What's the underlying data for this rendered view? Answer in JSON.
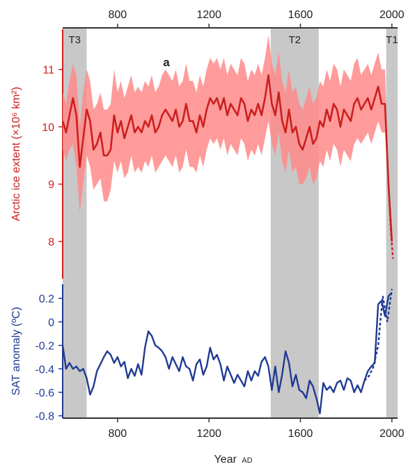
{
  "panel_label": "a",
  "colors": {
    "ice": "#cc1f1f",
    "ice_band": "#ff8a8a",
    "sat": "#1f3a93",
    "shade": "#c8c8c8",
    "axis": "#333333"
  },
  "chart_data": {
    "type": "line",
    "xlabel": "Year",
    "xlabel_suffix": "AD",
    "xlim": [
      560,
      2025
    ],
    "x_ticks": [
      800,
      1200,
      1600,
      2000
    ],
    "periods": [
      {
        "label": "T3",
        "start": 560,
        "end": 665
      },
      {
        "label": "T2",
        "start": 1470,
        "end": 1680
      },
      {
        "label": "T1",
        "start": 1975,
        "end": 2025
      }
    ],
    "panels": [
      {
        "name": "ice",
        "ylabel": "Arctic ice extent (×10⁶ km²)",
        "ylim": [
          7.35,
          11.7
        ],
        "y_ticks": [
          8,
          9,
          10,
          11
        ],
        "series": [
          {
            "x": [
              560,
              575,
              590,
              605,
              620,
              635,
              650,
              665,
              680,
              695,
              710,
              725,
              740,
              755,
              770,
              785,
              800,
              815,
              830,
              845,
              860,
              875,
              890,
              905,
              920,
              935,
              950,
              965,
              980,
              995,
              1010,
              1025,
              1040,
              1055,
              1070,
              1085,
              1100,
              1115,
              1130,
              1145,
              1160,
              1175,
              1190,
              1205,
              1220,
              1235,
              1250,
              1265,
              1280,
              1295,
              1310,
              1325,
              1340,
              1355,
              1370,
              1385,
              1400,
              1415,
              1430,
              1445,
              1460,
              1475,
              1490,
              1505,
              1520,
              1535,
              1550,
              1565,
              1580,
              1595,
              1610,
              1625,
              1640,
              1655,
              1670,
              1685,
              1700,
              1715,
              1730,
              1745,
              1760,
              1775,
              1790,
              1805,
              1820,
              1835,
              1850,
              1865,
              1880,
              1895,
              1910,
              1925,
              1940,
              1955,
              1970,
              1985,
              2000
            ],
            "y": [
              10.1,
              9.9,
              10.2,
              10.5,
              10.2,
              9.3,
              9.8,
              10.3,
              10.1,
              9.6,
              9.7,
              9.9,
              9.5,
              9.5,
              9.6,
              10.2,
              9.9,
              10.1,
              9.8,
              10.0,
              10.2,
              9.9,
              10.0,
              9.9,
              10.1,
              10.0,
              10.2,
              9.9,
              10.0,
              10.2,
              10.3,
              10.2,
              10.1,
              10.3,
              10.0,
              10.1,
              10.4,
              10.1,
              10.1,
              9.9,
              10.2,
              10.0,
              10.3,
              10.5,
              10.4,
              10.5,
              10.3,
              10.5,
              10.2,
              10.4,
              10.3,
              10.2,
              10.5,
              10.4,
              10.1,
              10.3,
              10.2,
              10.4,
              10.2,
              10.5,
              10.9,
              10.4,
              10.2,
              10.6,
              10.1,
              9.9,
              10.3,
              9.9,
              10.0,
              9.7,
              9.6,
              9.8,
              10.0,
              9.7,
              9.8,
              10.1,
              10.0,
              10.3,
              10.1,
              10.4,
              10.3,
              10.0,
              10.3,
              10.2,
              10.1,
              10.4,
              10.5,
              10.3,
              10.4,
              10.5,
              10.3,
              10.5,
              10.7,
              10.4,
              10.4,
              9.0,
              8.0
            ],
            "lower": [
              9.6,
              9.4,
              9.6,
              9.7,
              9.3,
              8.5,
              9.0,
              9.5,
              9.3,
              8.9,
              9.0,
              9.1,
              8.7,
              8.7,
              8.9,
              9.4,
              9.2,
              9.4,
              9.1,
              9.2,
              9.5,
              9.2,
              9.3,
              9.2,
              9.4,
              9.3,
              9.5,
              9.2,
              9.3,
              9.4,
              9.5,
              9.4,
              9.3,
              9.5,
              9.2,
              9.3,
              9.6,
              9.3,
              9.3,
              9.2,
              9.5,
              9.3,
              9.6,
              9.8,
              9.7,
              9.8,
              9.6,
              9.8,
              9.5,
              9.7,
              9.6,
              9.5,
              9.8,
              9.7,
              9.4,
              9.6,
              9.5,
              9.7,
              9.5,
              9.8,
              10.1,
              9.7,
              9.5,
              9.9,
              9.4,
              9.2,
              9.6,
              9.2,
              9.3,
              9.0,
              9.0,
              9.1,
              9.3,
              9.0,
              9.1,
              9.4,
              9.3,
              9.6,
              9.4,
              9.7,
              9.6,
              9.3,
              9.6,
              9.5,
              9.4,
              9.7,
              9.8,
              9.7,
              9.8,
              9.9,
              9.7,
              9.9,
              10.1,
              9.9,
              9.9,
              8.8,
              7.8
            ],
            "upper": [
              10.6,
              10.4,
              10.8,
              11.1,
              10.9,
              10.0,
              10.6,
              11.0,
              10.8,
              10.3,
              10.4,
              10.6,
              10.3,
              10.3,
              10.4,
              11.0,
              10.6,
              10.8,
              10.5,
              10.7,
              10.9,
              10.6,
              10.7,
              10.6,
              10.8,
              10.7,
              10.9,
              10.6,
              10.7,
              10.9,
              11.0,
              10.9,
              10.8,
              11.0,
              10.7,
              10.8,
              11.1,
              10.8,
              10.8,
              10.6,
              10.9,
              10.7,
              11.0,
              11.2,
              11.1,
              11.2,
              11.0,
              11.2,
              10.9,
              11.1,
              11.0,
              10.9,
              11.2,
              11.1,
              10.8,
              11.0,
              10.9,
              11.1,
              10.9,
              11.2,
              11.6,
              11.1,
              10.9,
              11.3,
              10.8,
              10.6,
              11.0,
              10.6,
              10.7,
              10.4,
              10.3,
              10.5,
              10.7,
              10.4,
              10.5,
              10.8,
              10.7,
              11.0,
              10.8,
              11.1,
              11.0,
              10.7,
              11.0,
              10.9,
              10.8,
              11.1,
              11.2,
              10.9,
              11.0,
              11.1,
              10.9,
              11.1,
              11.3,
              11.0,
              11.0,
              9.2,
              8.2
            ]
          },
          {
            "style": "dashed",
            "x": [
              1985,
              1995,
              2005
            ],
            "y": [
              9.0,
              8.2,
              7.7
            ]
          }
        ]
      },
      {
        "name": "sat",
        "ylabel": "SAT anomaly (ºC)",
        "ylim": [
          -0.82,
          0.32
        ],
        "y_ticks": [
          -0.8,
          -0.6,
          -0.4,
          -0.2,
          0,
          0.2
        ],
        "y_tick_labels": [
          "-0.8",
          "-0.6",
          "-0.4",
          "-0.2",
          "0",
          "0.2"
        ],
        "series": [
          {
            "x": [
              560,
              575,
              590,
              605,
              620,
              635,
              650,
              665,
              680,
              695,
              710,
              725,
              740,
              755,
              770,
              785,
              800,
              815,
              830,
              845,
              860,
              875,
              890,
              905,
              920,
              935,
              950,
              965,
              980,
              995,
              1010,
              1025,
              1040,
              1055,
              1070,
              1085,
              1100,
              1115,
              1130,
              1145,
              1160,
              1175,
              1190,
              1205,
              1220,
              1235,
              1250,
              1265,
              1280,
              1295,
              1310,
              1325,
              1340,
              1355,
              1370,
              1385,
              1400,
              1415,
              1430,
              1445,
              1460,
              1475,
              1490,
              1505,
              1520,
              1535,
              1550,
              1565,
              1580,
              1595,
              1610,
              1625,
              1640,
              1655,
              1670,
              1685,
              1700,
              1715,
              1730,
              1745,
              1760,
              1775,
              1790,
              1805,
              1820,
              1835,
              1850,
              1865,
              1880,
              1895,
              1910,
              1925,
              1940,
              1955,
              1970,
              1985,
              2000
            ],
            "y": [
              -0.2,
              -0.4,
              -0.35,
              -0.4,
              -0.38,
              -0.42,
              -0.4,
              -0.48,
              -0.62,
              -0.55,
              -0.42,
              -0.36,
              -0.3,
              -0.25,
              -0.28,
              -0.35,
              -0.3,
              -0.38,
              -0.34,
              -0.48,
              -0.4,
              -0.46,
              -0.36,
              -0.45,
              -0.22,
              -0.08,
              -0.12,
              -0.2,
              -0.22,
              -0.25,
              -0.3,
              -0.4,
              -0.3,
              -0.36,
              -0.42,
              -0.3,
              -0.38,
              -0.4,
              -0.5,
              -0.36,
              -0.32,
              -0.45,
              -0.38,
              -0.22,
              -0.32,
              -0.28,
              -0.36,
              -0.5,
              -0.38,
              -0.45,
              -0.52,
              -0.45,
              -0.5,
              -0.55,
              -0.42,
              -0.5,
              -0.42,
              -0.46,
              -0.34,
              -0.3,
              -0.38,
              -0.58,
              -0.38,
              -0.6,
              -0.45,
              -0.25,
              -0.35,
              -0.55,
              -0.45,
              -0.58,
              -0.6,
              -0.65,
              -0.5,
              -0.55,
              -0.65,
              -0.78,
              -0.52,
              -0.58,
              -0.55,
              -0.6,
              -0.52,
              -0.5,
              -0.58,
              -0.48,
              -0.5,
              -0.6,
              -0.54,
              -0.6,
              -0.5,
              -0.42,
              -0.38,
              -0.35,
              0.15,
              0.18,
              0.05,
              0.22,
              0.25
            ]
          },
          {
            "style": "dashed",
            "x": [
              1880,
              1900,
              1920,
              1940,
              1960,
              1980,
              2000
            ],
            "y": [
              -0.5,
              -0.46,
              -0.38,
              -0.2,
              0.22,
              0.0,
              0.28
            ]
          }
        ]
      }
    ]
  }
}
